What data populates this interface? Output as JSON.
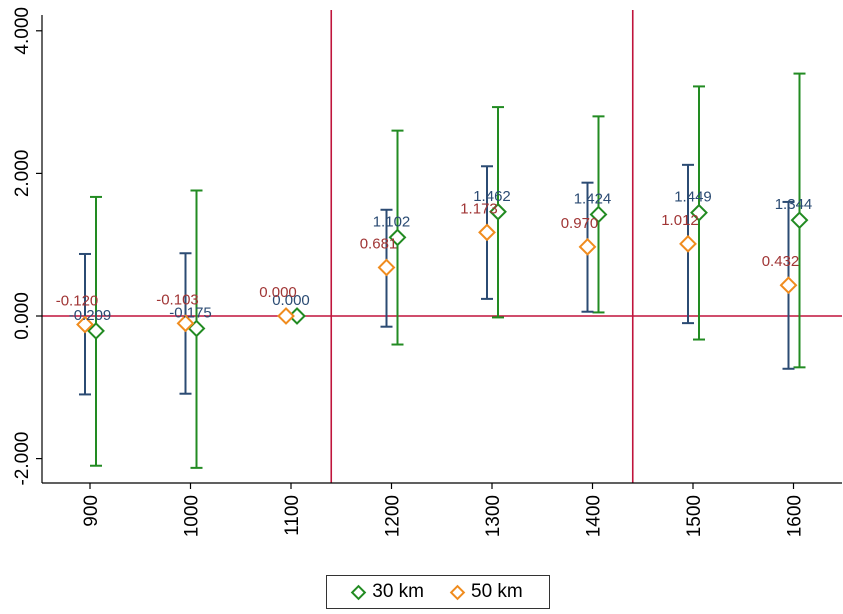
{
  "chart_data": {
    "type": "scatter",
    "title": "",
    "xlabel": "",
    "ylabel": "",
    "categories": [
      "900",
      "1000",
      "1100",
      "1200",
      "1300",
      "1400",
      "1500",
      "1600"
    ],
    "ylim": [
      -2.3,
      4.2
    ],
    "yticks": [
      -2,
      0,
      2,
      4
    ],
    "ytick_labels": [
      "-2.000",
      "0.000",
      "2.000",
      "4.000"
    ],
    "reference_lines": {
      "y": 0,
      "x_between": [
        [
          "1100",
          "1200"
        ],
        [
          "1400",
          "1500"
        ]
      ]
    },
    "series": [
      {
        "name": "30 km",
        "color": "#228B22",
        "marker": "diamond-hollow",
        "values": [
          -0.209,
          -0.175,
          0.0,
          1.102,
          1.462,
          1.424,
          1.449,
          1.344
        ],
        "ci_low": [
          -2.1,
          -2.13,
          0.0,
          -0.4,
          -0.02,
          0.05,
          -0.33,
          -0.72
        ],
        "ci_high": [
          1.67,
          1.76,
          0.0,
          2.6,
          2.93,
          2.8,
          3.22,
          3.4
        ],
        "labels": [
          "-0.209",
          "-0.175",
          "0.000",
          "1.102",
          "1.462",
          "1.424",
          "1.449",
          "1.344"
        ],
        "label_color": "#2B4B73"
      },
      {
        "name": "50 km",
        "color": "#F08C1E",
        "marker": "diamond-hollow",
        "values": [
          -0.12,
          -0.103,
          0.0,
          0.681,
          1.173,
          0.97,
          1.012,
          0.432
        ],
        "ci_low": [
          -1.1,
          -1.09,
          0.0,
          -0.15,
          0.24,
          0.06,
          -0.1,
          -0.74
        ],
        "ci_high": [
          0.87,
          0.88,
          0.0,
          1.49,
          2.1,
          1.87,
          2.12,
          1.6
        ],
        "labels": [
          "-0.120",
          "-0.103",
          "0.000",
          "0.681",
          "1.173",
          "0.970",
          "1.012",
          "0.432"
        ],
        "label_color": "#A03535"
      }
    ],
    "ci_color_50": "#2B4B73",
    "reference_color": "#C0143C",
    "legend_position": "bottom"
  },
  "legend": {
    "items": [
      {
        "label": "30 km",
        "color": "#228B22"
      },
      {
        "label": "50 km",
        "color": "#F08C1E"
      }
    ]
  }
}
